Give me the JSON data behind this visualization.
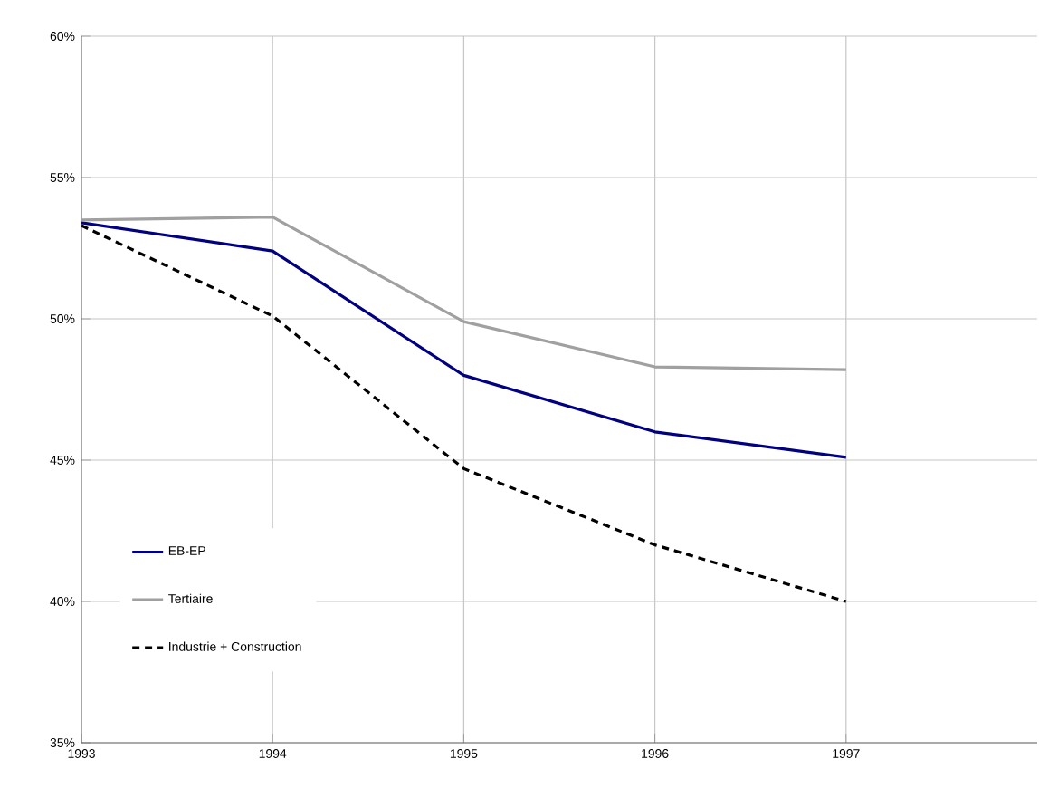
{
  "chart_data": {
    "type": "line",
    "x": [
      1993,
      1994,
      1995,
      1996,
      1997
    ],
    "xlim": [
      1993,
      1998
    ],
    "xticks": [
      1993,
      1994,
      1995,
      1996,
      1997
    ],
    "ylim": [
      35,
      60
    ],
    "yticks": [
      {
        "value": 35,
        "label": "35%"
      },
      {
        "value": 40,
        "label": "40%"
      },
      {
        "value": 45,
        "label": "45%"
      },
      {
        "value": 50,
        "label": "50%"
      },
      {
        "value": 55,
        "label": "55%"
      },
      {
        "value": 60,
        "label": "60%"
      }
    ],
    "grid": true,
    "legend": "left",
    "marker": "none",
    "series": [
      {
        "name": "EB-EP",
        "color": "#000080",
        "line_style": "solid",
        "values": [
          53.4,
          52.4,
          48.0,
          46.0,
          45.1
        ]
      },
      {
        "name": "Tertiaire",
        "color": "#a0a0a0",
        "line_style": "solid",
        "values": [
          53.5,
          53.6,
          49.9,
          48.3,
          48.2
        ]
      },
      {
        "name": "Industrie + Construction",
        "color": "#000000",
        "line_style": "dashed",
        "values": [
          53.3,
          50.1,
          44.7,
          42.0,
          40.0
        ]
      }
    ]
  }
}
